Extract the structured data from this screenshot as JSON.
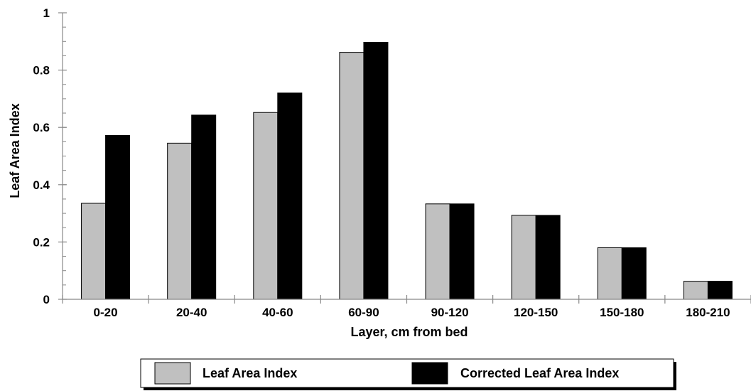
{
  "chart_data": {
    "type": "bar",
    "title": "",
    "xlabel": "Layer, cm from bed",
    "ylabel": "Leaf Area Index",
    "ylim": [
      0,
      1
    ],
    "yticks": [
      0,
      0.2,
      0.4,
      0.6,
      0.8,
      1
    ],
    "ytick_labels": [
      "0",
      "0.2",
      "0.4",
      "0.6",
      "0.8",
      "1"
    ],
    "categories": [
      "0-20",
      "20-40",
      "40-60",
      "60-90",
      "90-120",
      "120-150",
      "150-180",
      "180-210"
    ],
    "series": [
      {
        "name": "Leaf Area Index",
        "color": "#c0c0c0",
        "values": [
          0.335,
          0.545,
          0.652,
          0.862,
          0.333,
          0.293,
          0.18,
          0.063
        ]
      },
      {
        "name": "Corrected Leaf Area Index",
        "color": "#000000",
        "values": [
          0.572,
          0.643,
          0.72,
          0.897,
          0.333,
          0.293,
          0.18,
          0.063
        ]
      }
    ],
    "grid": false,
    "legend": "bottom"
  }
}
